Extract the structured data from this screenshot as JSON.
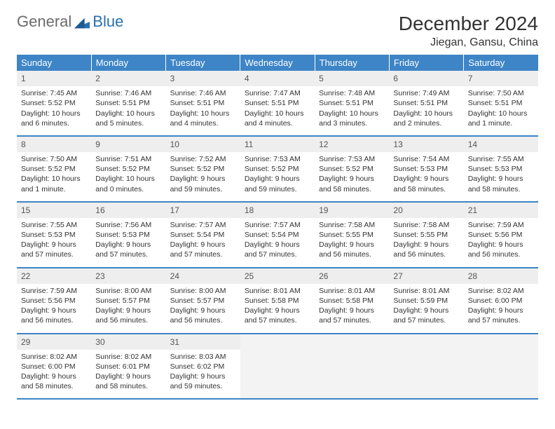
{
  "logo": {
    "word1": "General",
    "word2": "Blue",
    "word1_color": "#808080",
    "word2_color": "#2a6fb0",
    "icon_color": "#2a6fb0"
  },
  "title": "December 2024",
  "location": "Jiegan, Gansu, China",
  "header_bg": "#3d85c6",
  "border_color": "#3d85c6",
  "daynum_bg": "#eeeeee",
  "weekdays": [
    "Sunday",
    "Monday",
    "Tuesday",
    "Wednesday",
    "Thursday",
    "Friday",
    "Saturday"
  ],
  "weeks": [
    {
      "nums": [
        "1",
        "2",
        "3",
        "4",
        "5",
        "6",
        "7"
      ],
      "cells": [
        {
          "sunrise": "7:45 AM",
          "sunset": "5:52 PM",
          "daylight": "10 hours and 6 minutes."
        },
        {
          "sunrise": "7:46 AM",
          "sunset": "5:51 PM",
          "daylight": "10 hours and 5 minutes."
        },
        {
          "sunrise": "7:46 AM",
          "sunset": "5:51 PM",
          "daylight": "10 hours and 4 minutes."
        },
        {
          "sunrise": "7:47 AM",
          "sunset": "5:51 PM",
          "daylight": "10 hours and 4 minutes."
        },
        {
          "sunrise": "7:48 AM",
          "sunset": "5:51 PM",
          "daylight": "10 hours and 3 minutes."
        },
        {
          "sunrise": "7:49 AM",
          "sunset": "5:51 PM",
          "daylight": "10 hours and 2 minutes."
        },
        {
          "sunrise": "7:50 AM",
          "sunset": "5:51 PM",
          "daylight": "10 hours and 1 minute."
        }
      ]
    },
    {
      "nums": [
        "8",
        "9",
        "10",
        "11",
        "12",
        "13",
        "14"
      ],
      "cells": [
        {
          "sunrise": "7:50 AM",
          "sunset": "5:52 PM",
          "daylight": "10 hours and 1 minute."
        },
        {
          "sunrise": "7:51 AM",
          "sunset": "5:52 PM",
          "daylight": "10 hours and 0 minutes."
        },
        {
          "sunrise": "7:52 AM",
          "sunset": "5:52 PM",
          "daylight": "9 hours and 59 minutes."
        },
        {
          "sunrise": "7:53 AM",
          "sunset": "5:52 PM",
          "daylight": "9 hours and 59 minutes."
        },
        {
          "sunrise": "7:53 AM",
          "sunset": "5:52 PM",
          "daylight": "9 hours and 58 minutes."
        },
        {
          "sunrise": "7:54 AM",
          "sunset": "5:53 PM",
          "daylight": "9 hours and 58 minutes."
        },
        {
          "sunrise": "7:55 AM",
          "sunset": "5:53 PM",
          "daylight": "9 hours and 58 minutes."
        }
      ]
    },
    {
      "nums": [
        "15",
        "16",
        "17",
        "18",
        "19",
        "20",
        "21"
      ],
      "cells": [
        {
          "sunrise": "7:55 AM",
          "sunset": "5:53 PM",
          "daylight": "9 hours and 57 minutes."
        },
        {
          "sunrise": "7:56 AM",
          "sunset": "5:53 PM",
          "daylight": "9 hours and 57 minutes."
        },
        {
          "sunrise": "7:57 AM",
          "sunset": "5:54 PM",
          "daylight": "9 hours and 57 minutes."
        },
        {
          "sunrise": "7:57 AM",
          "sunset": "5:54 PM",
          "daylight": "9 hours and 57 minutes."
        },
        {
          "sunrise": "7:58 AM",
          "sunset": "5:55 PM",
          "daylight": "9 hours and 56 minutes."
        },
        {
          "sunrise": "7:58 AM",
          "sunset": "5:55 PM",
          "daylight": "9 hours and 56 minutes."
        },
        {
          "sunrise": "7:59 AM",
          "sunset": "5:56 PM",
          "daylight": "9 hours and 56 minutes."
        }
      ]
    },
    {
      "nums": [
        "22",
        "23",
        "24",
        "25",
        "26",
        "27",
        "28"
      ],
      "cells": [
        {
          "sunrise": "7:59 AM",
          "sunset": "5:56 PM",
          "daylight": "9 hours and 56 minutes."
        },
        {
          "sunrise": "8:00 AM",
          "sunset": "5:57 PM",
          "daylight": "9 hours and 56 minutes."
        },
        {
          "sunrise": "8:00 AM",
          "sunset": "5:57 PM",
          "daylight": "9 hours and 56 minutes."
        },
        {
          "sunrise": "8:01 AM",
          "sunset": "5:58 PM",
          "daylight": "9 hours and 57 minutes."
        },
        {
          "sunrise": "8:01 AM",
          "sunset": "5:58 PM",
          "daylight": "9 hours and 57 minutes."
        },
        {
          "sunrise": "8:01 AM",
          "sunset": "5:59 PM",
          "daylight": "9 hours and 57 minutes."
        },
        {
          "sunrise": "8:02 AM",
          "sunset": "6:00 PM",
          "daylight": "9 hours and 57 minutes."
        }
      ]
    },
    {
      "nums": [
        "29",
        "30",
        "31",
        "",
        "",
        "",
        ""
      ],
      "cells": [
        {
          "sunrise": "8:02 AM",
          "sunset": "6:00 PM",
          "daylight": "9 hours and 58 minutes."
        },
        {
          "sunrise": "8:02 AM",
          "sunset": "6:01 PM",
          "daylight": "9 hours and 58 minutes."
        },
        {
          "sunrise": "8:03 AM",
          "sunset": "6:02 PM",
          "daylight": "9 hours and 59 minutes."
        },
        null,
        null,
        null,
        null
      ]
    }
  ],
  "labels": {
    "sunrise": "Sunrise:",
    "sunset": "Sunset:",
    "daylight": "Daylight:"
  }
}
